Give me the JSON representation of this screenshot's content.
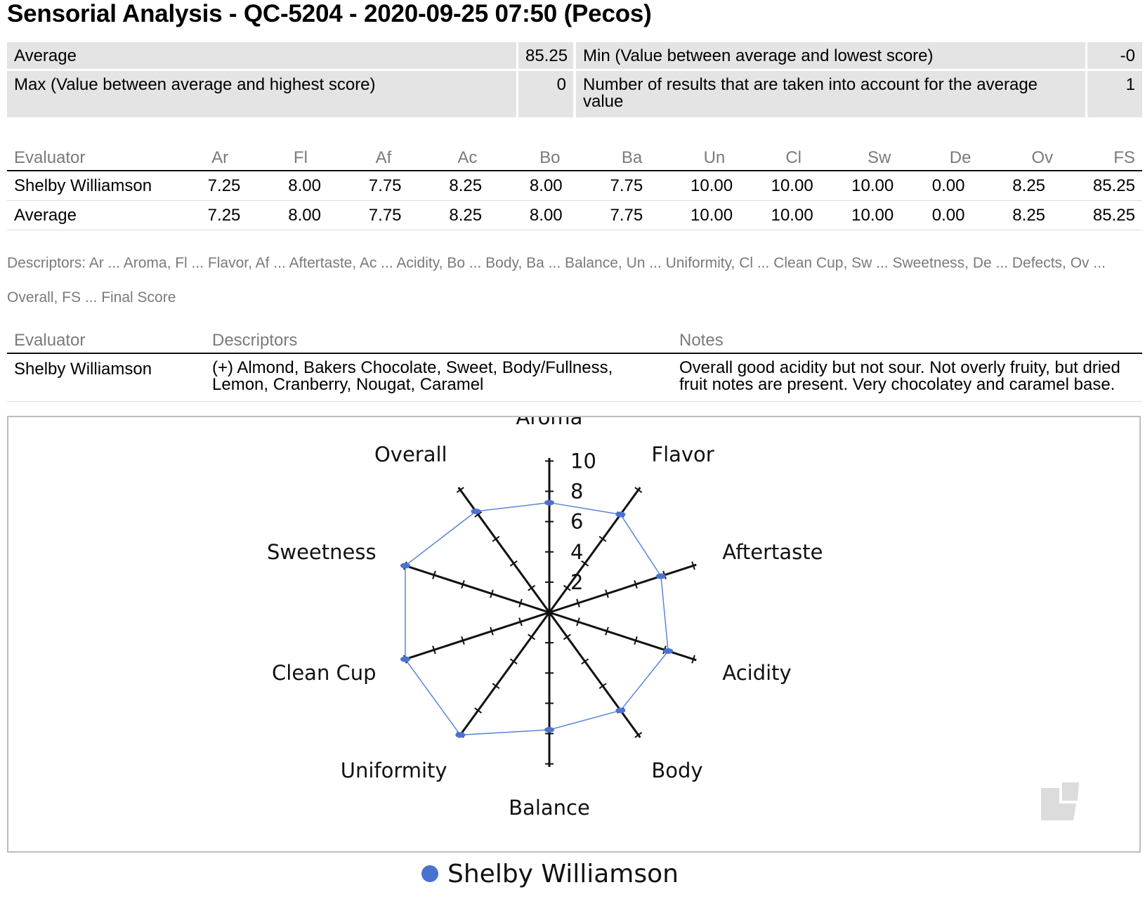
{
  "title": "Sensorial Analysis - QC-5204 - 2020-09-25 07:50 (Pecos)",
  "summary": {
    "average_label": "Average",
    "average_value": "85.25",
    "min_label": "Min (Value between average and lowest score)",
    "min_value": "-0",
    "max_label": "Max (Value between average and highest score)",
    "max_value": "0",
    "count_label": "Number of results that are taken into account for the average value",
    "count_value": "1"
  },
  "scores_table": {
    "headers": [
      "Evaluator",
      "Ar",
      "Fl",
      "Af",
      "Ac",
      "Bo",
      "Ba",
      "Un",
      "Cl",
      "Sw",
      "De",
      "Ov",
      "FS"
    ],
    "rows": [
      [
        "Shelby Williamson",
        "7.25",
        "8.00",
        "7.75",
        "8.25",
        "8.00",
        "7.75",
        "10.00",
        "10.00",
        "10.00",
        "0.00",
        "8.25",
        "85.25"
      ],
      [
        "Average",
        "7.25",
        "8.00",
        "7.75",
        "8.25",
        "8.00",
        "7.75",
        "10.00",
        "10.00",
        "10.00",
        "0.00",
        "8.25",
        "85.25"
      ]
    ]
  },
  "descriptor_legend": "Descriptors: Ar ... Aroma, Fl ... Flavor, Af ... Aftertaste, Ac ... Acidity, Bo ... Body, Ba ... Balance, Un ... Uniformity, Cl ... Clean Cup, Sw ... Sweetness, De ... Defects, Ov ... Overall, FS ... Final Score",
  "notes_table": {
    "headers": [
      "Evaluator",
      "Descriptors",
      "Notes"
    ],
    "rows": [
      [
        "Shelby Williamson",
        "(+) Almond, Bakers Chocolate, Sweet, Body/Fullness, Lemon, Cranberry, Nougat, Caramel",
        "Overall good acidity but not sour. Not overly fruity, but dried fruit notes are present. Very chocolatey and caramel base."
      ]
    ]
  },
  "chart_data": {
    "type": "radar",
    "axes": [
      "Aroma",
      "Flavor",
      "Aftertaste",
      "Acidity",
      "Body",
      "Balance",
      "Uniformity",
      "Clean Cup",
      "Sweetness",
      "Overall"
    ],
    "ticks": [
      "2",
      "4",
      "6",
      "8",
      "10"
    ],
    "range": [
      0,
      10
    ],
    "series": [
      {
        "name": "Shelby Williamson",
        "values": [
          7.25,
          8.0,
          7.75,
          8.25,
          8.0,
          7.75,
          10.0,
          10.0,
          10.0,
          8.25
        ],
        "color": "#4a72d1",
        "line_color": "#5b86d6"
      }
    ],
    "legend_position": "bottom"
  }
}
